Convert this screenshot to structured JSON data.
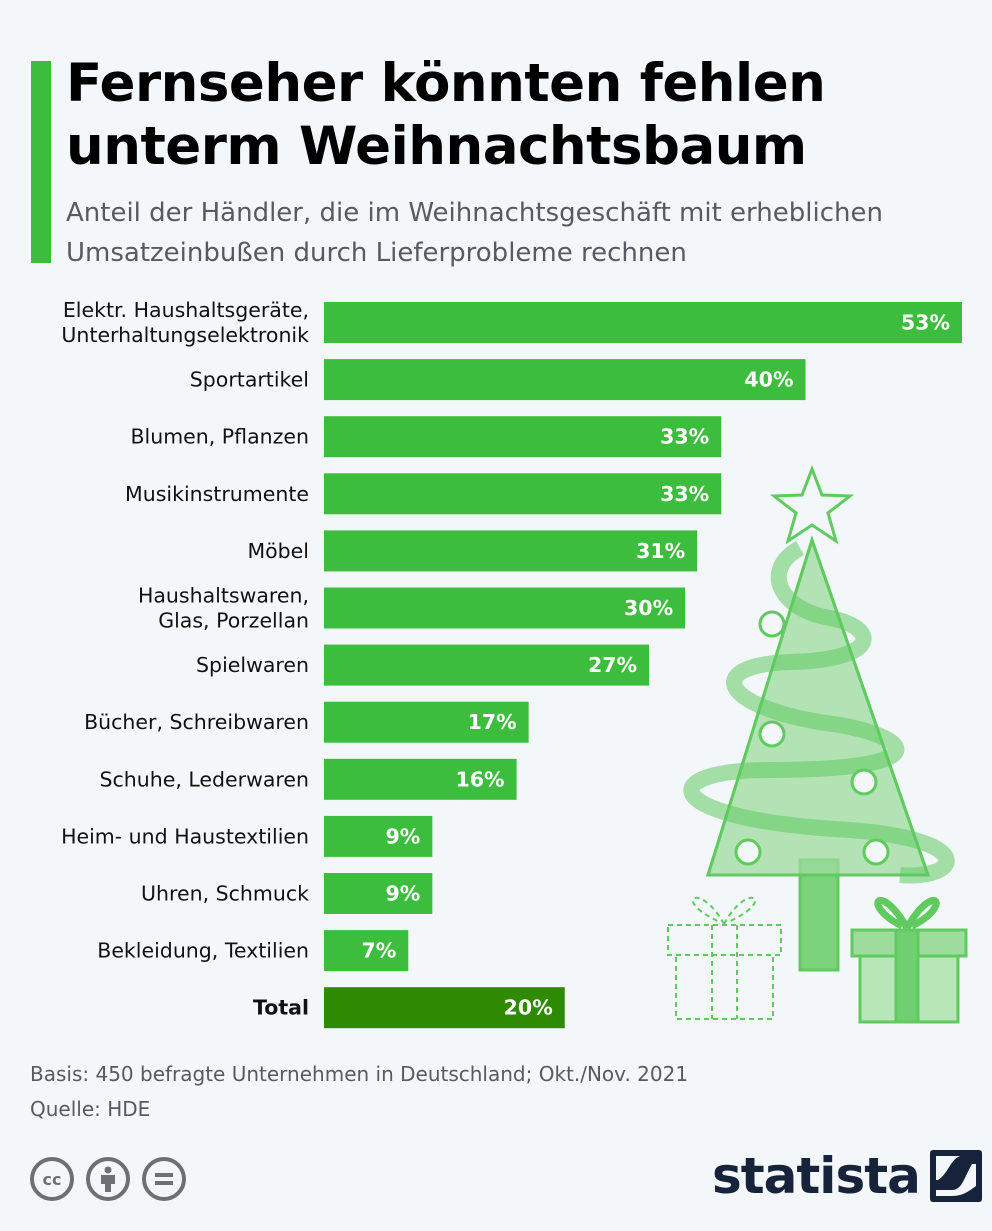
{
  "header": {
    "title": "Fernseher könnten fehlen unterm Weihnachtsbaum",
    "subtitle": "Anteil der Händler, die im Weihnachtsgeschäft mit erheblichen Umsatzeinbußen durch Lieferprobleme rechnen"
  },
  "chart_data": {
    "type": "bar",
    "orientation": "horizontal",
    "title": "Fernseher könnten fehlen unterm Weihnachtsbaum",
    "subtitle": "Anteil der Händler, die im Weihnachtsgeschäft mit erheblichen Umsatzeinbußen durch Lieferprobleme rechnen",
    "categories": [
      "Elektr. Haushaltsgeräte,\nUnterhaltungselektronik",
      "Sportartikel",
      "Blumen, Pflanzen",
      "Musikinstrumente",
      "Möbel",
      "Haushaltswaren,\nGlas, Porzellan",
      "Spielwaren",
      "Bücher, Schreibwaren",
      "Schuhe, Lederwaren",
      "Heim- und Haustextilien",
      "Uhren, Schmuck",
      "Bekleidung, Textilien",
      "Total"
    ],
    "values": [
      53,
      40,
      33,
      33,
      31,
      30,
      27,
      17,
      16,
      9,
      9,
      7,
      20
    ],
    "value_labels": [
      "53%",
      "40%",
      "33%",
      "33%",
      "31%",
      "30%",
      "27%",
      "17%",
      "16%",
      "9%",
      "9%",
      "7%",
      "20%"
    ],
    "unit": "%",
    "xlim": [
      0,
      53
    ],
    "grid": false,
    "highlight_category": "Total",
    "colors": {
      "bar": "#3dbd3d",
      "total_bar": "#2e8a00",
      "accent": "#3dbd3d"
    }
  },
  "footer": {
    "basis": "Basis: 450 befragte Unternehmen in Deutschland; Okt./Nov. 2021",
    "source": "Quelle: HDE",
    "brand": "statista",
    "license_icons": [
      "cc",
      "by",
      "nd"
    ]
  }
}
